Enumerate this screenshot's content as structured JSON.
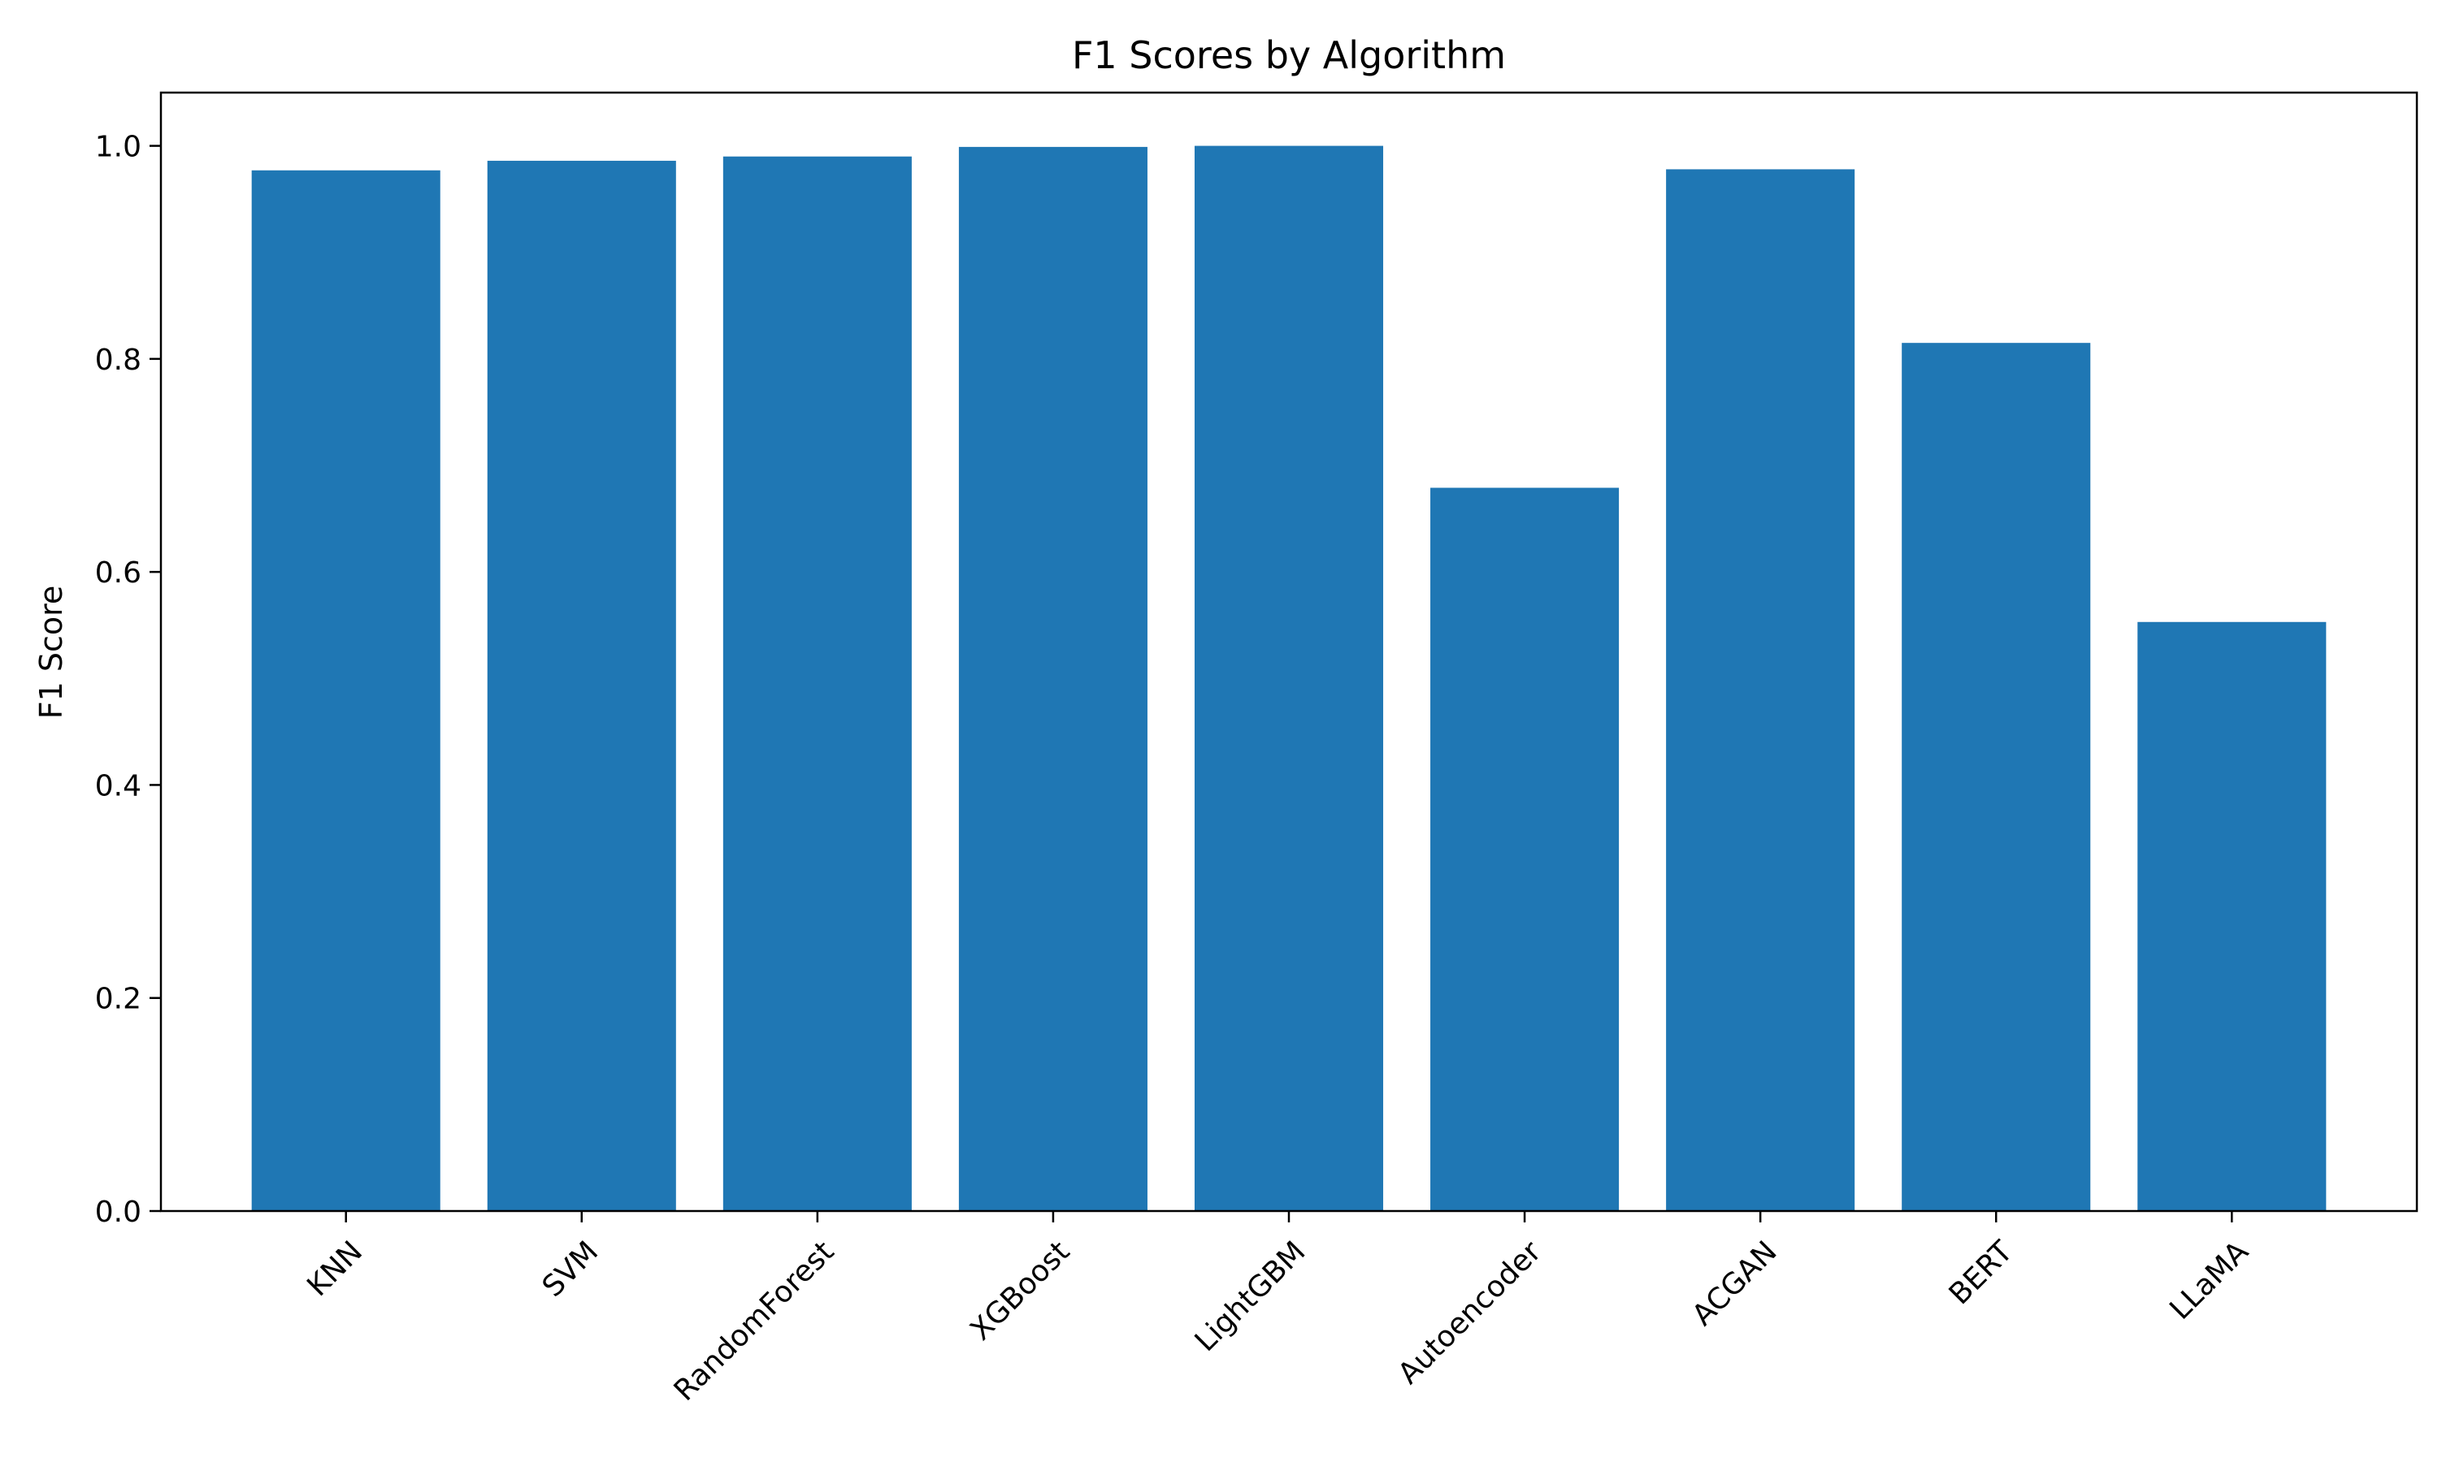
{
  "chart_data": {
    "type": "bar",
    "title": "F1 Scores by Algorithm",
    "xlabel": "",
    "ylabel": "F1 Score",
    "categories": [
      "KNN",
      "SVM",
      "RandomForest",
      "XGBoost",
      "LightGBM",
      "Autoencoder",
      "ACGAN",
      "BERT",
      "LLaMA"
    ],
    "values": [
      0.977,
      0.986,
      0.99,
      0.999,
      1.0,
      0.679,
      0.978,
      0.815,
      0.553
    ],
    "ylim": [
      0,
      1.05
    ],
    "yticks": [
      "0.0",
      "0.2",
      "0.4",
      "0.6",
      "0.8",
      "1.0"
    ],
    "grid": false,
    "legend": "none",
    "bar_color": "#1f77b4"
  }
}
